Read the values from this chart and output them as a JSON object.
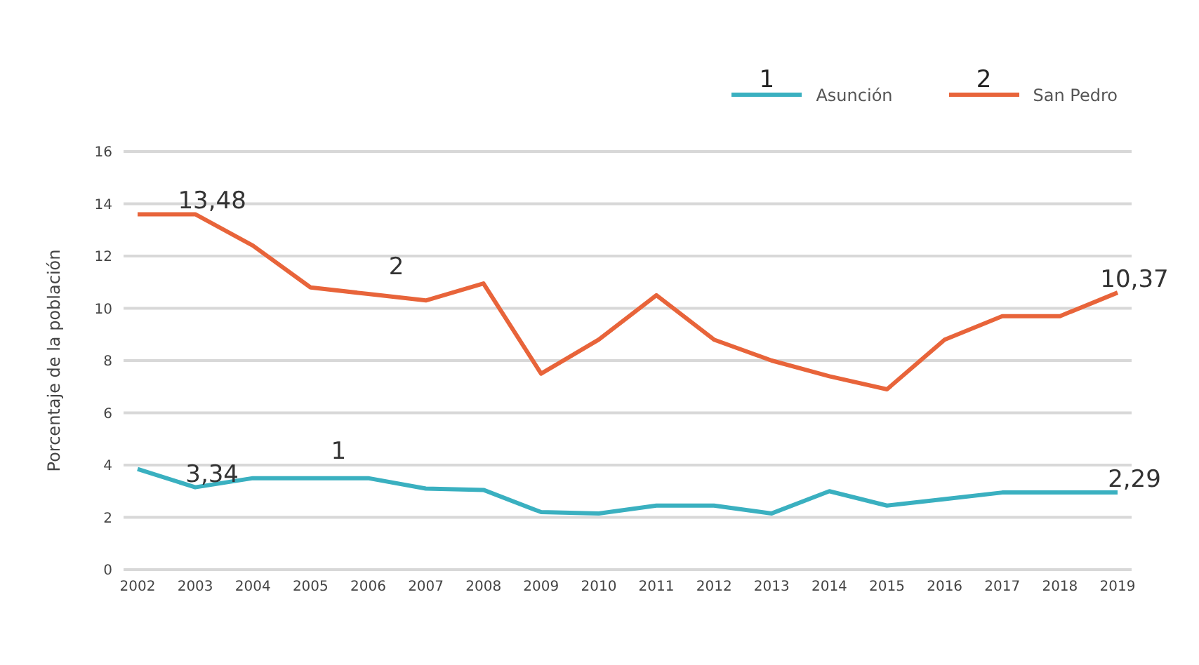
{
  "chart_data": {
    "type": "line",
    "ylabel": "Porcentaje de la población",
    "categories": [
      "2002",
      "2003",
      "2004",
      "2005",
      "2006",
      "2007",
      "2008",
      "2009",
      "2010",
      "2011",
      "2012",
      "2013",
      "2014",
      "2015",
      "2016",
      "2017",
      "2018",
      "2019"
    ],
    "series": [
      {
        "name": "Asunción",
        "color": "#3ab0c0",
        "values": [
          3.85,
          3.15,
          3.5,
          3.5,
          3.5,
          3.1,
          3.05,
          2.2,
          2.15,
          2.45,
          2.45,
          2.15,
          3.0,
          2.45,
          2.7,
          2.95,
          2.95,
          2.95
        ]
      },
      {
        "name": "San Pedro",
        "color": "#e8643a",
        "values": [
          13.6,
          13.6,
          12.4,
          10.8,
          10.55,
          10.3,
          10.95,
          7.5,
          8.8,
          10.5,
          8.8,
          8.0,
          7.4,
          6.9,
          8.8,
          9.7,
          9.7,
          10.6
        ]
      }
    ],
    "ylim": [
      0,
      16
    ],
    "yticks": [
      0,
      2,
      4,
      6,
      8,
      10,
      12,
      14,
      16
    ],
    "grid": "y",
    "legend": "top right",
    "marker": "none",
    "line_style": "solid",
    "annotations": [
      {
        "text": "13,48",
        "x": "2003",
        "y": 13.6
      },
      {
        "text": "3,34",
        "x": "2003",
        "y": 3.15
      },
      {
        "text": "10,37",
        "x": "2019",
        "y": 10.6
      },
      {
        "text": "2,29",
        "x": "2019",
        "y": 2.95
      },
      {
        "text": "1",
        "x": "2005",
        "y": 3.5
      },
      {
        "text": "2",
        "x": "2006",
        "y": 10.55
      },
      "1",
      "2"
    ]
  }
}
